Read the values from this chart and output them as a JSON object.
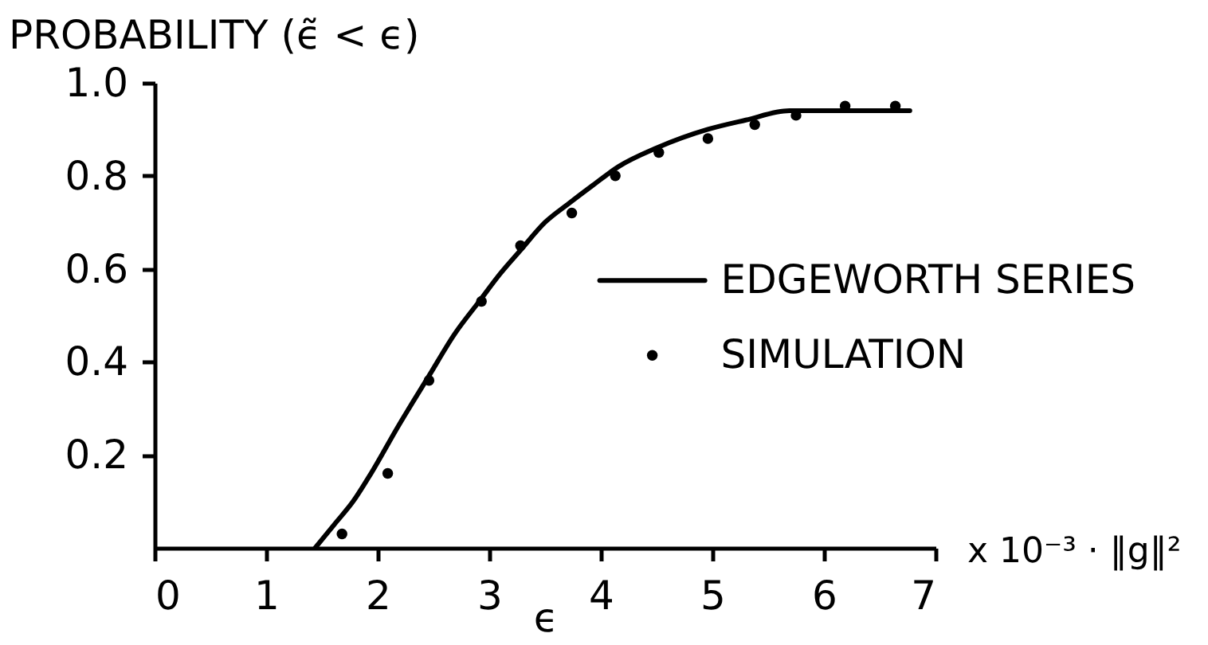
{
  "chart_data": {
    "type": "line",
    "ylabel": "PROBABILITY (ϵ̃ < ϵ)",
    "xlabel": "ϵ",
    "annotations": [
      "x 10⁻³ · ‖g‖²"
    ],
    "xlim": [
      0,
      7
    ],
    "xticks": [
      0,
      1,
      2,
      3,
      4,
      5,
      6,
      7
    ],
    "ylim": [
      0,
      1
    ],
    "yticks": [
      0.2,
      0.4,
      0.6,
      0.8,
      {
        "value": 1,
        "label": "1.0"
      }
    ],
    "legend": "right",
    "series": [
      {
        "name": "EDGEWORTH SERIES",
        "color": "#000000",
        "x": [
          1.44,
          1.61,
          1.78,
          1.94,
          2.18,
          2.46,
          2.69,
          2.91,
          3.1,
          3.28,
          3.5,
          3.71,
          3.93,
          4.16,
          4.5,
          4.96,
          5.3,
          5.69,
          6.2,
          6.77
        ],
        "values": [
          0,
          0.05,
          0.1,
          0.16,
          0.26,
          0.37,
          0.46,
          0.53,
          0.59,
          0.64,
          0.7,
          0.74,
          0.78,
          0.82,
          0.86,
          0.9,
          0.92,
          0.94,
          0.94,
          0.94
        ]
      },
      {
        "name": "SIMULATION",
        "type": "scatter",
        "marker": "circle",
        "color": "#000000",
        "x": [
          1.68,
          2.09,
          2.46,
          2.93,
          3.28,
          3.74,
          4.13,
          4.52,
          4.96,
          5.38,
          5.75,
          6.19,
          6.64
        ],
        "values": [
          0.03,
          0.16,
          0.36,
          0.53,
          0.65,
          0.72,
          0.8,
          0.85,
          0.88,
          0.91,
          0.93,
          0.95,
          0.95
        ]
      }
    ]
  }
}
